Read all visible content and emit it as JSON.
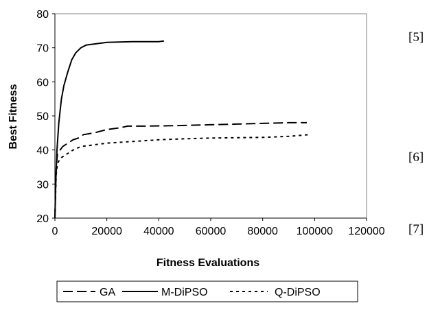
{
  "chart_data": {
    "type": "line",
    "xlabel": "Fitness Evaluations",
    "ylabel": "Best Fitness",
    "xlim": [
      0,
      120000
    ],
    "ylim": [
      20,
      80
    ],
    "x_ticks": [
      "0",
      "20000",
      "40000",
      "60000",
      "80000",
      "100000",
      "120000"
    ],
    "y_ticks": [
      "20",
      "30",
      "40",
      "50",
      "60",
      "70",
      "80"
    ],
    "grid": false,
    "legend_position": "bottom",
    "series": [
      {
        "name": "GA",
        "dash": "dashed",
        "x": [
          0,
          500,
          1000,
          2000,
          3000,
          5000,
          7000,
          9000,
          11000,
          15000,
          20000,
          25000,
          28000,
          35000,
          50000,
          60000,
          70000,
          80000,
          90000,
          97000
        ],
        "y": [
          20,
          35,
          39,
          40,
          41,
          42,
          43,
          43.5,
          44.5,
          45,
          46,
          46.5,
          47,
          47,
          47.2,
          47.4,
          47.6,
          47.8,
          48,
          48
        ]
      },
      {
        "name": "M-DiPSO",
        "dash": "solid",
        "x": [
          0,
          300,
          800,
          1500,
          2500,
          3500,
          5000,
          6500,
          8000,
          10000,
          12000,
          15000,
          18000,
          20000,
          25000,
          30000,
          35000,
          40000,
          42000
        ],
        "y": [
          20,
          30,
          40,
          48,
          55,
          59,
          63,
          66.5,
          68.5,
          70,
          70.8,
          71.1,
          71.4,
          71.6,
          71.7,
          71.8,
          71.8,
          71.8,
          72
        ]
      },
      {
        "name": "Q-DiPSO",
        "dash": "dotted",
        "x": [
          0,
          500,
          1000,
          2000,
          3000,
          5000,
          7000,
          10000,
          15000,
          20000,
          30000,
          40000,
          50000,
          60000,
          70000,
          80000,
          90000,
          98000
        ],
        "y": [
          20,
          33,
          36,
          37.5,
          38,
          39,
          40,
          41,
          41.5,
          42,
          42.5,
          43,
          43.3,
          43.5,
          43.6,
          43.7,
          44,
          44.5
        ]
      }
    ]
  },
  "side_refs": [
    "[5]",
    "[6]",
    "[7]"
  ]
}
